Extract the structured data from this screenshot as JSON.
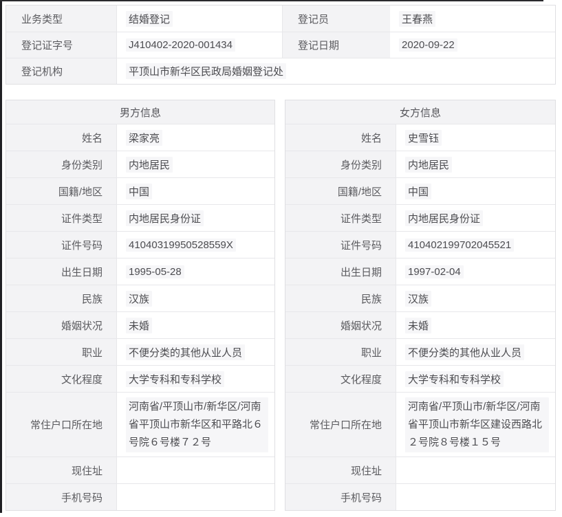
{
  "colors": {
    "label_bg": "#f3f3f5",
    "border_outer": "#dfdfe2",
    "border_inner": "#e7e7ea",
    "label_text": "#5b5b5f",
    "value_text": "#4c4c50",
    "edge_dark": "#202024",
    "value_highlight": "#f6f6f8"
  },
  "top_table": {
    "rows": [
      {
        "label1": "业务类型",
        "value1": "结婚登记",
        "label2": "登记员",
        "value2": "王春燕"
      },
      {
        "label1": "登记证字号",
        "value1": "J410402-2020-001434",
        "label2": "登记日期",
        "value2": "2020-09-22"
      },
      {
        "label1": "登记机构",
        "value1": "平顶山市新华区民政局婚姻登记处"
      }
    ]
  },
  "field_labels": {
    "name": "姓名",
    "identity_type": "身份类别",
    "nationality": "国籍/地区",
    "id_type": "证件类型",
    "id_number": "证件号码",
    "birth_date": "出生日期",
    "ethnicity": "民族",
    "marital_status": "婚姻状况",
    "occupation": "职业",
    "education": "文化程度",
    "household_address": "常住户口所在地",
    "current_address": "现住址",
    "mobile": "手机号码"
  },
  "male": {
    "title": "男方信息",
    "name": "梁家亮",
    "identity_type": "内地居民",
    "nationality": "中国",
    "id_type": "内地居民身份证",
    "id_number": "41040319950528559X",
    "birth_date": "1995-05-28",
    "ethnicity": "汉族",
    "marital_status": "未婚",
    "occupation": "不便分类的其他从业人员",
    "education": "大学专科和专科学校",
    "household_address": "河南省/平顶山市/新华区/河南省平顶山市新华区和平路北６号院６号楼７２号",
    "current_address": "",
    "mobile": ""
  },
  "female": {
    "title": "女方信息",
    "name": "史雪钰",
    "identity_type": "内地居民",
    "nationality": "中国",
    "id_type": "内地居民身份证",
    "id_number": "410402199702045521",
    "birth_date": "1997-02-04",
    "ethnicity": "汉族",
    "marital_status": "未婚",
    "occupation": "不便分类的其他从业人员",
    "education": "大学专科和专科学校",
    "household_address": "河南省/平顶山市/新华区/河南省平顶山市新华区建设西路北２号院８号楼１５号",
    "current_address": "",
    "mobile": ""
  }
}
